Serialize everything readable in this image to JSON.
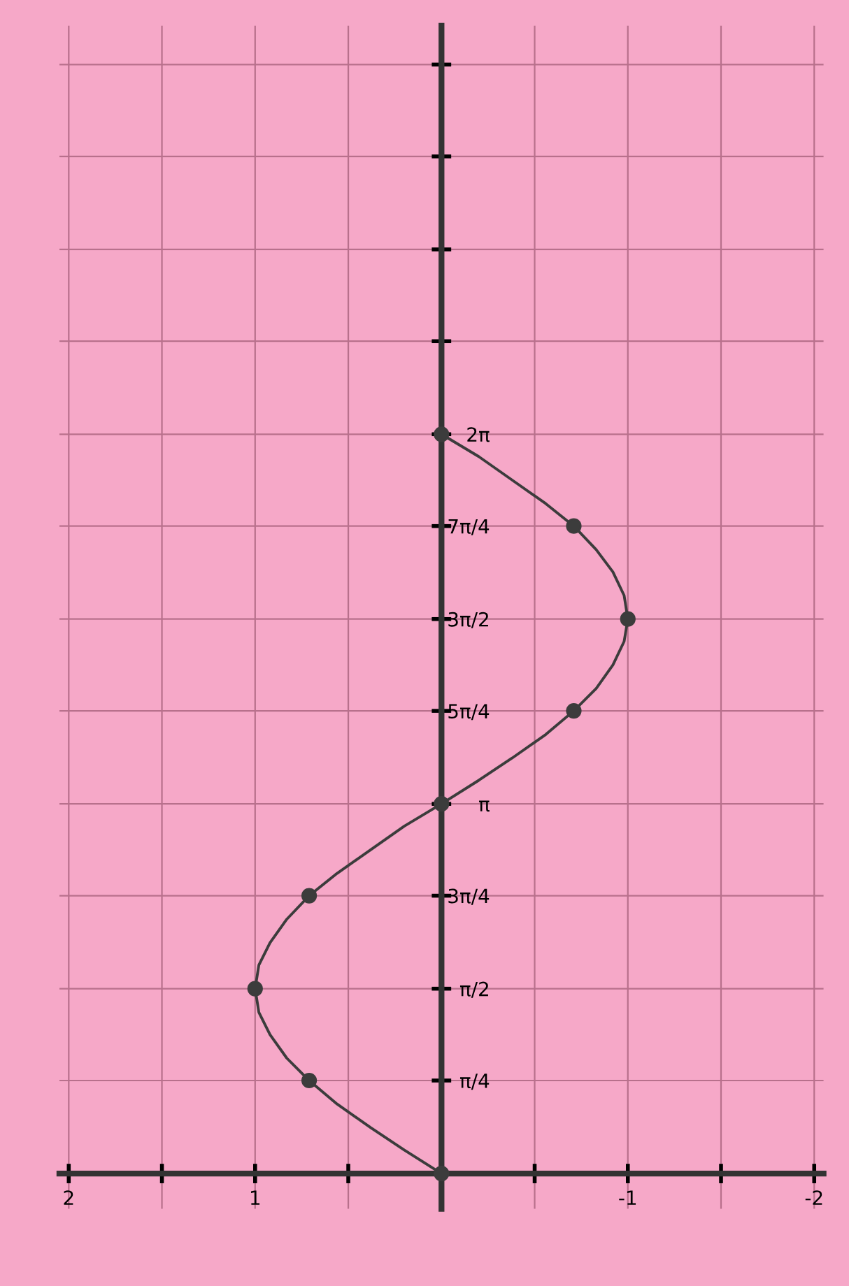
{
  "chart_data": {
    "type": "line",
    "x": [
      0,
      0.71,
      1,
      0.71,
      0,
      -0.71,
      -1,
      -0.71,
      0
    ],
    "series": [
      {
        "color": "#3c3c3c",
        "x": [
          0,
          0.2,
          0.38,
          0.56,
          0.71,
          0.83,
          0.92,
          0.98,
          1,
          0.98,
          0.92,
          0.83,
          0.71,
          0.56,
          0.38,
          0.2,
          0,
          -0.2,
          -0.38,
          -0.56,
          -0.71,
          -0.83,
          -0.92,
          -0.98,
          -1,
          -0.98,
          -0.92,
          -0.83,
          -0.71,
          -0.56,
          -0.38,
          -0.2,
          0
        ],
        "values": [
          0,
          0.2,
          0.39,
          0.59,
          0.79,
          0.98,
          1.18,
          1.37,
          1.57,
          1.77,
          1.96,
          2.16,
          2.36,
          2.55,
          2.75,
          2.95,
          3.14,
          3.34,
          3.53,
          3.73,
          3.93,
          4.12,
          4.32,
          4.52,
          4.71,
          4.91,
          5.11,
          5.3,
          5.5,
          5.69,
          5.89,
          6.09,
          6.28
        ],
        "marker": "none"
      },
      {
        "type": "scatter",
        "color": "#3c3c3c",
        "values": [
          0,
          0.79,
          1.57,
          2.36,
          3.14,
          3.93,
          4.71,
          5.5,
          6.28
        ]
      }
    ],
    "marker": "circle",
    "line_style": "solid",
    "grid": true,
    "legend": false,
    "ylim": [
      -0.3,
      9.75
    ],
    "yticks": [
      {
        "value": 0,
        "label": null
      },
      {
        "value": 0.79,
        "label": "π/4"
      },
      {
        "value": 1.57,
        "label": "π/2"
      },
      {
        "value": 2.36,
        "label": "3π/4"
      },
      {
        "value": 3.14,
        "label": "π"
      },
      {
        "value": 3.93,
        "label": "5π/4"
      },
      {
        "value": 4.71,
        "label": "3π/2"
      },
      {
        "value": 5.5,
        "label": "7π/4"
      },
      {
        "value": 6.28,
        "label": "2π"
      },
      {
        "value": 7.07,
        "label": null
      },
      {
        "value": 7.85,
        "label": null
      },
      {
        "value": 8.64,
        "label": null
      },
      {
        "value": 9.42,
        "label": null
      }
    ],
    "xlim": [
      2.05,
      -2.05
    ],
    "xticks": [
      2,
      {
        "value": 1.5,
        "label": null
      },
      1,
      {
        "value": 0.5,
        "label": null
      },
      {
        "value": 0,
        "label": null
      },
      {
        "value": -0.5,
        "label": null
      },
      -1,
      {
        "value": -1.5,
        "label": null
      },
      -2
    ]
  }
}
